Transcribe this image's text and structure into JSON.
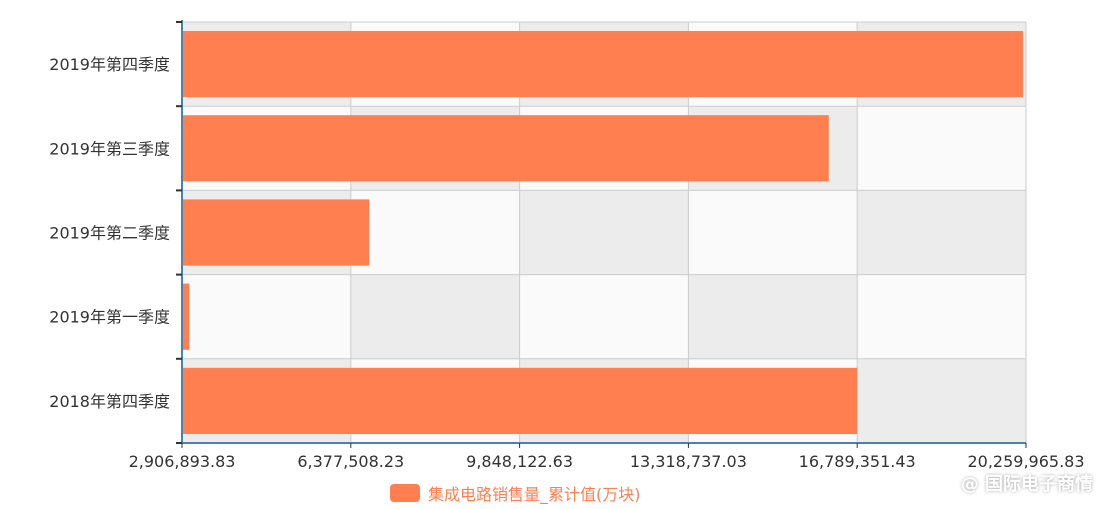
{
  "chart_data": {
    "type": "bar",
    "orientation": "horizontal",
    "categories": [
      "2019年第四季度",
      "2019年第三季度",
      "2019年第二季度",
      "2019年第一季度",
      "2018年第四季度"
    ],
    "series": [
      {
        "name": "集成电路销售量_累计值(万块)",
        "values": [
          20200000,
          16205000,
          6760000,
          3060000,
          16790000
        ],
        "color": "#ff7f50"
      }
    ],
    "xlim": [
      2906893.83,
      20259965.83
    ],
    "xticks": [
      "2,906,893.83",
      "6,377,508.23",
      "9,848,122.63",
      "13,318,737.03",
      "16,789,351.43",
      "20,259,965.83"
    ],
    "grid": true,
    "legend_position": "bottom"
  },
  "colors": {
    "bar": "#ff7f50",
    "axis": "#4682b4",
    "band_dark": "#ececec",
    "band_light": "#fafafa",
    "grid": "#cccccc",
    "text": "#333333"
  },
  "watermark": {
    "text": "@ 国际电子商情"
  }
}
